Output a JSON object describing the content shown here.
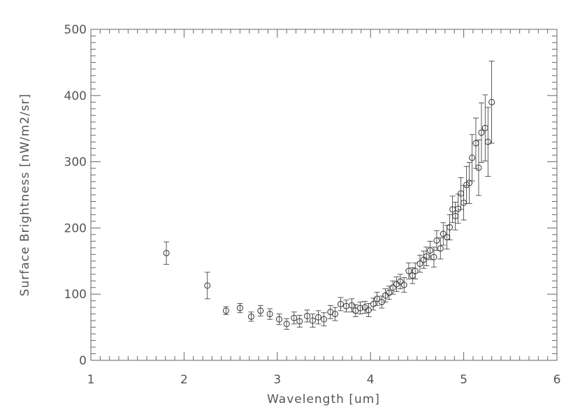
{
  "chart_data": {
    "type": "scatter",
    "title": "",
    "xlabel": "Wavelength [um]",
    "ylabel": "Surface Brightness [nW/m2/sr]",
    "xlim": [
      1,
      6
    ],
    "ylim": [
      0,
      500
    ],
    "xticks": [
      "1",
      "2",
      "3",
      "4",
      "5",
      "6"
    ],
    "yticks": [
      "0",
      "100",
      "200",
      "300",
      "400",
      "500"
    ],
    "x_minor_step": 0.1,
    "y_minor_step": 10,
    "grid": false,
    "marker": "open-circle",
    "color": "#333333",
    "points": [
      {
        "x": 1.81,
        "y": 162,
        "err": 17
      },
      {
        "x": 2.25,
        "y": 113,
        "err": 20
      },
      {
        "x": 2.45,
        "y": 75,
        "err": 6
      },
      {
        "x": 2.6,
        "y": 79,
        "err": 7
      },
      {
        "x": 2.72,
        "y": 66,
        "err": 7
      },
      {
        "x": 2.82,
        "y": 75,
        "err": 8
      },
      {
        "x": 2.92,
        "y": 70,
        "err": 8
      },
      {
        "x": 3.02,
        "y": 62,
        "err": 8
      },
      {
        "x": 3.1,
        "y": 55,
        "err": 8
      },
      {
        "x": 3.18,
        "y": 64,
        "err": 9
      },
      {
        "x": 3.24,
        "y": 59,
        "err": 9
      },
      {
        "x": 3.32,
        "y": 67,
        "err": 9
      },
      {
        "x": 3.38,
        "y": 60,
        "err": 10
      },
      {
        "x": 3.44,
        "y": 65,
        "err": 10
      },
      {
        "x": 3.5,
        "y": 62,
        "err": 10
      },
      {
        "x": 3.57,
        "y": 73,
        "err": 10
      },
      {
        "x": 3.62,
        "y": 70,
        "err": 10
      },
      {
        "x": 3.68,
        "y": 85,
        "err": 10
      },
      {
        "x": 3.74,
        "y": 82,
        "err": 9
      },
      {
        "x": 3.8,
        "y": 83,
        "err": 10
      },
      {
        "x": 3.84,
        "y": 75,
        "err": 9
      },
      {
        "x": 3.89,
        "y": 79,
        "err": 9
      },
      {
        "x": 3.94,
        "y": 80,
        "err": 9
      },
      {
        "x": 3.98,
        "y": 76,
        "err": 10
      },
      {
        "x": 4.03,
        "y": 85,
        "err": 9
      },
      {
        "x": 4.07,
        "y": 93,
        "err": 10
      },
      {
        "x": 4.12,
        "y": 88,
        "err": 9
      },
      {
        "x": 4.16,
        "y": 98,
        "err": 10
      },
      {
        "x": 4.2,
        "y": 102,
        "err": 10
      },
      {
        "x": 4.24,
        "y": 110,
        "err": 10
      },
      {
        "x": 4.28,
        "y": 115,
        "err": 11
      },
      {
        "x": 4.32,
        "y": 119,
        "err": 11
      },
      {
        "x": 4.36,
        "y": 114,
        "err": 11
      },
      {
        "x": 4.41,
        "y": 135,
        "err": 12
      },
      {
        "x": 4.45,
        "y": 128,
        "err": 12
      },
      {
        "x": 4.48,
        "y": 135,
        "err": 12
      },
      {
        "x": 4.53,
        "y": 146,
        "err": 13
      },
      {
        "x": 4.57,
        "y": 152,
        "err": 13
      },
      {
        "x": 4.6,
        "y": 157,
        "err": 14
      },
      {
        "x": 4.64,
        "y": 166,
        "err": 14
      },
      {
        "x": 4.68,
        "y": 156,
        "err": 15
      },
      {
        "x": 4.71,
        "y": 181,
        "err": 15
      },
      {
        "x": 4.75,
        "y": 169,
        "err": 16
      },
      {
        "x": 4.78,
        "y": 191,
        "err": 17
      },
      {
        "x": 4.82,
        "y": 186,
        "err": 18
      },
      {
        "x": 4.85,
        "y": 201,
        "err": 19
      },
      {
        "x": 4.88,
        "y": 228,
        "err": 20
      },
      {
        "x": 4.91,
        "y": 218,
        "err": 21
      },
      {
        "x": 4.94,
        "y": 229,
        "err": 22
      },
      {
        "x": 4.97,
        "y": 252,
        "err": 24
      },
      {
        "x": 5.0,
        "y": 238,
        "err": 26
      },
      {
        "x": 5.03,
        "y": 265,
        "err": 28
      },
      {
        "x": 5.06,
        "y": 268,
        "err": 31
      },
      {
        "x": 5.09,
        "y": 306,
        "err": 35
      },
      {
        "x": 5.13,
        "y": 328,
        "err": 38
      },
      {
        "x": 5.16,
        "y": 291,
        "err": 42
      },
      {
        "x": 5.19,
        "y": 344,
        "err": 45
      },
      {
        "x": 5.23,
        "y": 351,
        "err": 50
      },
      {
        "x": 5.26,
        "y": 330,
        "err": 52
      },
      {
        "x": 5.3,
        "y": 390,
        "err": 62
      }
    ]
  }
}
